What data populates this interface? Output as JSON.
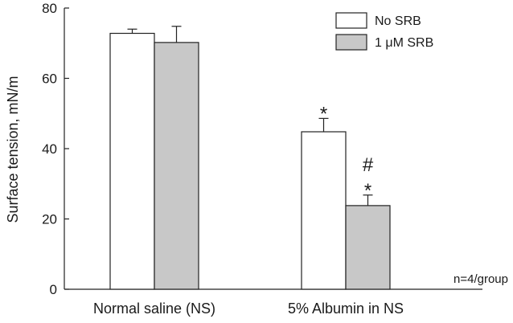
{
  "chart_data": {
    "type": "bar",
    "categories": [
      "Normal saline (NS)",
      "5% Albumin in NS"
    ],
    "series": [
      {
        "name": "No SRB",
        "values": [
          72.8,
          44.8
        ],
        "errors": [
          1.2,
          3.8
        ],
        "color": "#ffffff"
      },
      {
        "name": "1 μM SRB",
        "values": [
          70.2,
          23.8
        ],
        "errors": [
          4.6,
          3.0
        ],
        "color": "#c8c8c8"
      }
    ],
    "ylabel": "Surface tension, mN/m",
    "xlabel": "",
    "ylim": [
      0,
      80
    ],
    "yticks": [
      0,
      20,
      40,
      60,
      80
    ],
    "legend_position": "top-right",
    "annotations": [
      {
        "text": "*",
        "category": 1,
        "series": 0
      },
      {
        "text": "*",
        "category": 1,
        "series": 1
      },
      {
        "text": "#",
        "category": 1,
        "series": 1
      }
    ],
    "note": "n=4/group"
  }
}
